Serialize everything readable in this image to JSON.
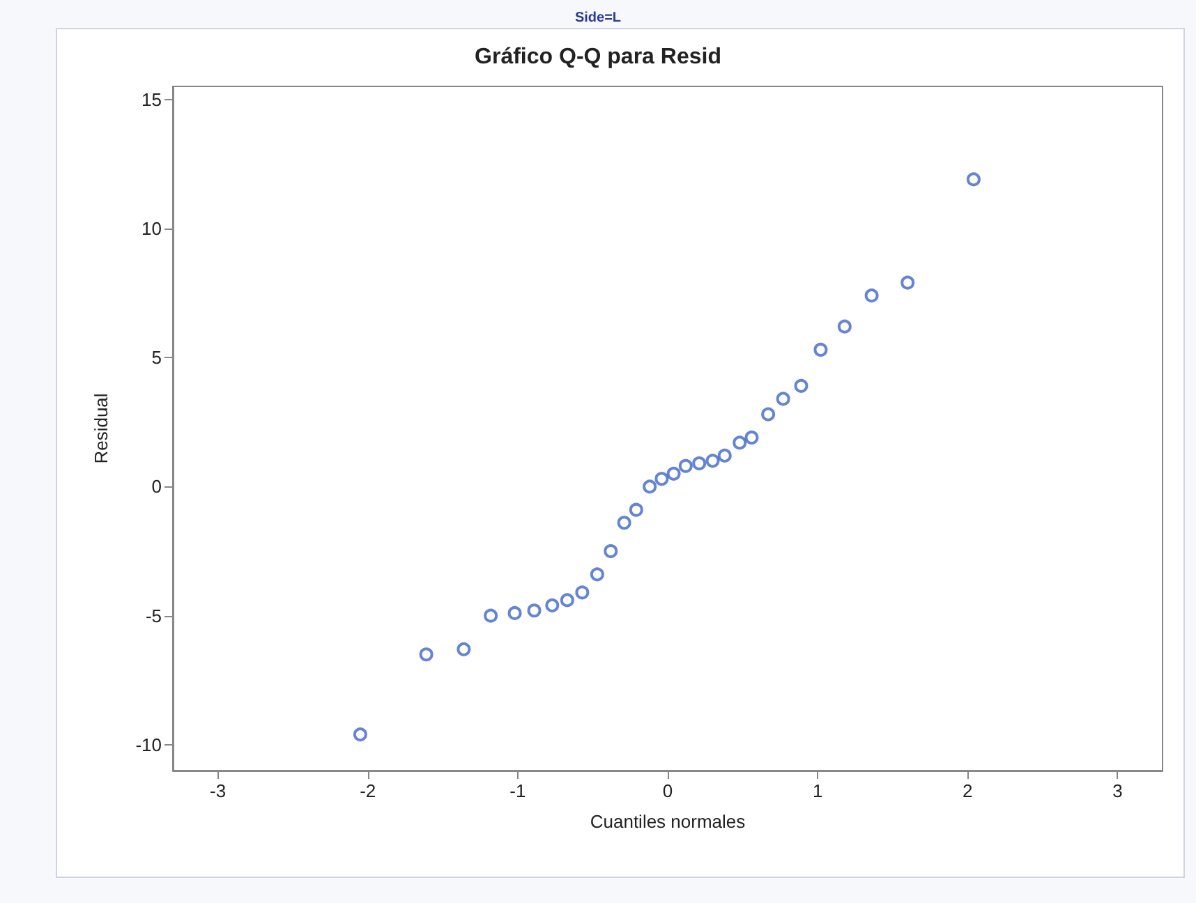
{
  "chart_data": {
    "type": "scatter",
    "title": "Gráfico Q-Q para Resid",
    "annotations": [
      "Side=L"
    ],
    "xlabel": "Cuantiles normales",
    "ylabel": "Residual",
    "x": [
      -2.05,
      -1.61,
      -1.36,
      -1.18,
      -1.02,
      -0.89,
      -0.77,
      -0.67,
      -0.57,
      -0.47,
      -0.38,
      -0.29,
      -0.21,
      -0.12,
      -0.04,
      0.04,
      0.12,
      0.21,
      0.3,
      0.38,
      0.48,
      0.56,
      0.67,
      0.77,
      0.89,
      1.02,
      1.18,
      1.36,
      1.6,
      2.04
    ],
    "values": [
      -9.6,
      -6.5,
      -6.3,
      -5.0,
      -4.9,
      -4.8,
      -4.6,
      -4.4,
      -4.1,
      -3.4,
      -2.5,
      -1.4,
      -0.9,
      0.0,
      0.3,
      0.5,
      0.8,
      0.9,
      1.0,
      1.2,
      1.7,
      1.9,
      2.8,
      3.4,
      3.9,
      5.3,
      6.2,
      7.4,
      7.9,
      11.9
    ],
    "color": "#3f66c8",
    "marker": "circle",
    "grid": false,
    "xlim": [
      -3.3,
      3.3
    ],
    "xticks": [
      -3,
      -2,
      -1,
      0,
      1,
      2,
      3
    ],
    "ylim": [
      -11,
      15.5
    ],
    "yticks": [
      -10,
      -5,
      0,
      5,
      10,
      15
    ]
  }
}
